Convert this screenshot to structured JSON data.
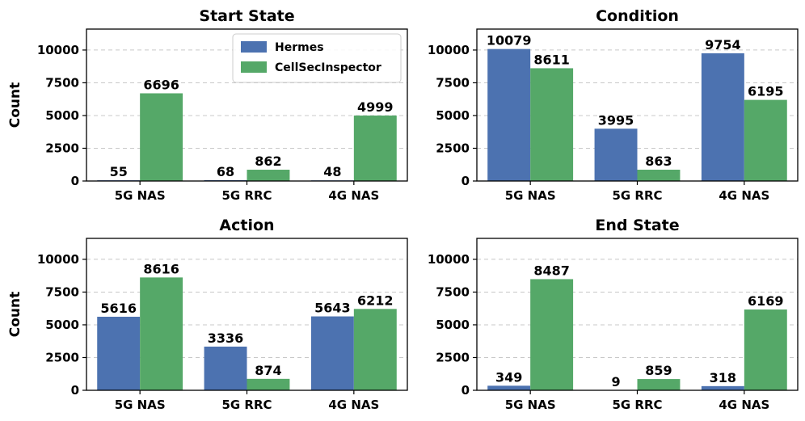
{
  "colors": {
    "Hermes": "#4c72b0",
    "CellSecInspector": "#55a868"
  },
  "chart_data": [
    {
      "type": "bar",
      "title": "Start State",
      "ylabel": "Count",
      "categories": [
        "5G NAS",
        "5G RRC",
        "4G NAS"
      ],
      "ylim": [
        0,
        11600
      ],
      "yticks": [
        0,
        2500,
        5000,
        7500,
        10000
      ],
      "grid": true,
      "legend": "top-right",
      "series": [
        {
          "name": "Hermes",
          "values": [
            55,
            68,
            48
          ]
        },
        {
          "name": "CellSecInspector",
          "values": [
            6696,
            862,
            4999
          ]
        }
      ]
    },
    {
      "type": "bar",
      "title": "Condition",
      "ylabel": "",
      "categories": [
        "5G NAS",
        "5G RRC",
        "4G NAS"
      ],
      "ylim": [
        0,
        11600
      ],
      "yticks": [
        0,
        2500,
        5000,
        7500,
        10000
      ],
      "grid": true,
      "series": [
        {
          "name": "Hermes",
          "values": [
            10079,
            3995,
            9754
          ]
        },
        {
          "name": "CellSecInspector",
          "values": [
            8611,
            863,
            6195
          ]
        }
      ]
    },
    {
      "type": "bar",
      "title": "Action",
      "ylabel": "Count",
      "categories": [
        "5G NAS",
        "5G RRC",
        "4G NAS"
      ],
      "ylim": [
        0,
        11600
      ],
      "yticks": [
        0,
        2500,
        5000,
        7500,
        10000
      ],
      "grid": true,
      "series": [
        {
          "name": "Hermes",
          "values": [
            5616,
            3336,
            5643
          ]
        },
        {
          "name": "CellSecInspector",
          "values": [
            8616,
            874,
            6212
          ]
        }
      ]
    },
    {
      "type": "bar",
      "title": "End State",
      "ylabel": "",
      "categories": [
        "5G NAS",
        "5G RRC",
        "4G NAS"
      ],
      "ylim": [
        0,
        11600
      ],
      "yticks": [
        0,
        2500,
        5000,
        7500,
        10000
      ],
      "grid": true,
      "series": [
        {
          "name": "Hermes",
          "values": [
            349,
            9,
            318
          ]
        },
        {
          "name": "CellSecInspector",
          "values": [
            8487,
            859,
            6169
          ]
        }
      ]
    }
  ]
}
